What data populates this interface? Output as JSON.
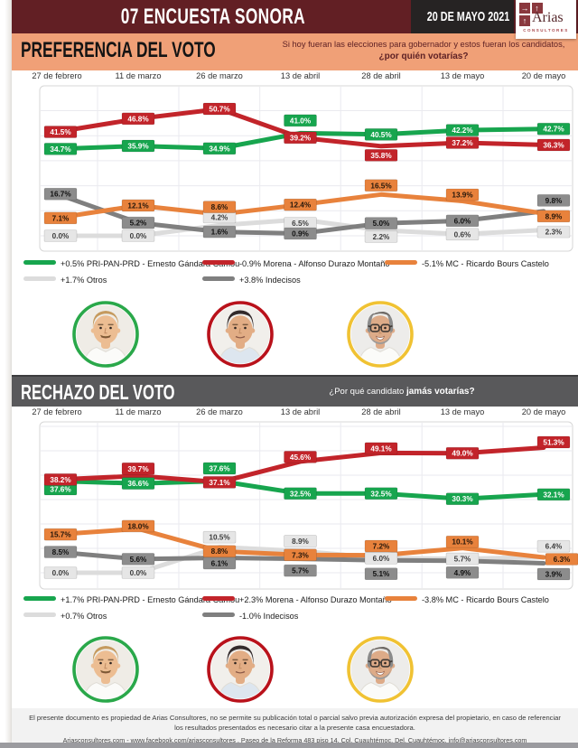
{
  "header": {
    "title": "07 ENCUESTA SONORA",
    "date_badge": "20 DE MAYO 2021",
    "logo_name": "Arias",
    "logo_subtitle": "CONSULTORES"
  },
  "preferencia": {
    "title": "PREFERENCIA DEL VOTO",
    "question_line1": "Si hoy fueran las elecciones para gobernador y estos fueran los candidatos,",
    "question_line2": "¿por quién votarías?"
  },
  "rechazo": {
    "title": "RECHAZO DEL VOTO",
    "question_normal": "¿Por qué candidato ",
    "question_bold": "jamás votarías?"
  },
  "candidates": [
    {
      "name": "Ernesto Gándara Camou",
      "ring_color": "#2aa84a"
    },
    {
      "name": "Alfonso Durazo Montaño",
      "ring_color": "#b9121b"
    },
    {
      "name": "Ricardo Bours Castelo",
      "ring_color": "#f0c233"
    }
  ],
  "footer": {
    "disclaimer": "El presente documento es propiedad de Arias Consultores, no se permite su publicación total o parcial salvo previa autorización expresa del propietario, en caso de referenciar los resultados presentados es necesario citar a la presente casa encuestadora.",
    "contact": "Ariasconsultores.com -  www.facebook.com/ariasconsultores , Paseo de la Reforma 483 piso 14, Col. Cuauhtémoc, Del. Cuauhtémoc, info@ariasconsultores.com"
  },
  "chart_data": [
    {
      "type": "line",
      "title": "PREFERENCIA DEL VOTO",
      "question": "Si hoy fueran las elecciones para gobernador y estos fueran los candidatos, ¿por quién votarías?",
      "categories": [
        "27 de febrero",
        "11 de marzo",
        "26 de marzo",
        "13 de abril",
        "28 de abril",
        "13 de mayo",
        "20 de mayo"
      ],
      "series": [
        {
          "name": "PRI-PAN-PRD - Ernesto Gándara Camou",
          "change": "+0.5%",
          "color": "#17a54e",
          "label_bg": "#17a54e",
          "label_text_color": "#ffffff",
          "values": [
            34.7,
            35.9,
            34.9,
            41.0,
            40.5,
            42.2,
            42.7
          ]
        },
        {
          "name": "Morena - Alfonso Durazo Montaño",
          "change": "-0.9%",
          "color": "#c2242a",
          "label_bg": "#c2242a",
          "label_text_color": "#ffffff",
          "values": [
            41.5,
            46.8,
            50.7,
            39.2,
            35.8,
            37.2,
            36.3
          ]
        },
        {
          "name": "MC - Ricardo Bours Castelo",
          "change": "-5.1%",
          "color": "#e8823c",
          "label_bg": "#e8823c",
          "label_text_color": "#26170b",
          "values": [
            7.1,
            12.1,
            8.6,
            12.4,
            16.5,
            13.9,
            8.9
          ]
        },
        {
          "name": "Otros",
          "change": "+1.7%",
          "color": "#dcdcdc",
          "label_bg": "#e6e6e6",
          "label_text_color": "#3d3d3d",
          "values": [
            0.0,
            0.0,
            4.2,
            6.5,
            2.2,
            0.6,
            2.3
          ]
        },
        {
          "name": "Indecisos",
          "change": "+3.8%",
          "color": "#7f7f7f",
          "label_bg": "#8c8c8c",
          "label_text_color": "#111111",
          "values": [
            16.7,
            5.2,
            1.6,
            0.9,
            5.0,
            6.0,
            9.8
          ]
        }
      ],
      "ylim": [
        0,
        60
      ],
      "grid": true,
      "legend_position": "bottom",
      "value_label_format": "0.0%"
    },
    {
      "type": "line",
      "title": "RECHAZO DEL VOTO",
      "question": "¿Por qué candidato jamás votarías?",
      "categories": [
        "27 de febrero",
        "11 de marzo",
        "26 de marzo",
        "13 de abril",
        "28 de abril",
        "13 de mayo",
        "20 de mayo"
      ],
      "series": [
        {
          "name": "PRI-PAN-PRD - Ernesto Gándara Camou",
          "change": "+1.7%",
          "color": "#17a54e",
          "label_bg": "#17a54e",
          "label_text_color": "#ffffff",
          "values": [
            37.6,
            36.6,
            37.6,
            32.5,
            32.5,
            30.3,
            32.1
          ]
        },
        {
          "name": "Morena - Alfonso Durazo Montaño",
          "change": "+2.3%",
          "color": "#c2242a",
          "label_bg": "#c2242a",
          "label_text_color": "#ffffff",
          "values": [
            38.2,
            39.7,
            37.1,
            45.6,
            49.1,
            49.0,
            51.3
          ]
        },
        {
          "name": "MC - Ricardo Bours Castelo",
          "change": "-3.8%",
          "color": "#e8823c",
          "label_bg": "#e8823c",
          "label_text_color": "#26170b",
          "values": [
            15.7,
            18.0,
            8.8,
            7.3,
            7.2,
            10.1,
            6.3
          ]
        },
        {
          "name": "Otros",
          "change": "+0.7%",
          "color": "#dcdcdc",
          "label_bg": "#e6e6e6",
          "label_text_color": "#3d3d3d",
          "values": [
            0.0,
            0.0,
            10.5,
            8.9,
            6.0,
            5.7,
            6.4
          ]
        },
        {
          "name": "Indecisos",
          "change": "-1.0%",
          "color": "#7f7f7f",
          "label_bg": "#8c8c8c",
          "label_text_color": "#111111",
          "values": [
            8.5,
            5.6,
            6.1,
            5.7,
            5.1,
            4.9,
            3.9
          ]
        }
      ],
      "ylim": [
        0,
        62
      ],
      "grid": true,
      "legend_position": "bottom",
      "value_label_format": "0.0%"
    }
  ]
}
